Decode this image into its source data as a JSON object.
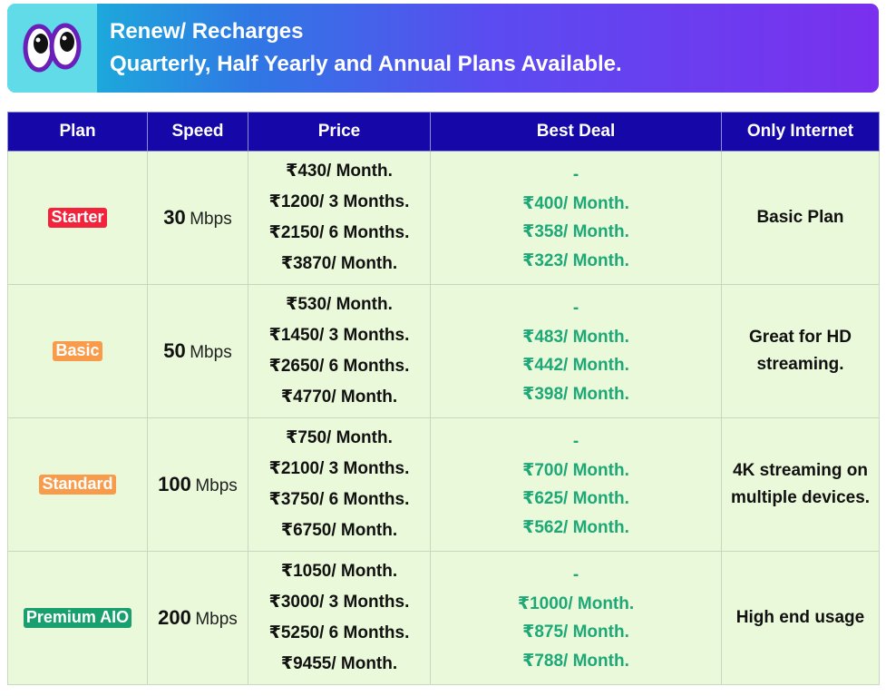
{
  "banner": {
    "logo_icon": "cartoon-eyes-icon",
    "line1": "Renew/ Recharges",
    "line2": "Quarterly, Half Yearly and Annual Plans Available."
  },
  "table": {
    "headers": [
      "Plan",
      "Speed",
      "Price",
      "Best Deal",
      "Only Internet"
    ],
    "rows": [
      {
        "plan": "Starter",
        "badge_color": "#f2233b",
        "speed": "30",
        "unit": "Mbps",
        "prices": [
          "₹430/ Month.",
          "₹1200/ 3 Months.",
          "₹2150/ 6 Months.",
          "₹3870/ Month."
        ],
        "deals": [
          "-",
          "₹400/ Month.",
          "₹358/ Month.",
          "₹323/ Month."
        ],
        "note": "Basic Plan"
      },
      {
        "plan": "Basic",
        "badge_color": "#f89c4c",
        "speed": "50",
        "unit": "Mbps",
        "prices": [
          "₹530/ Month.",
          "₹1450/ 3 Months.",
          "₹2650/ 6 Months.",
          "₹4770/ Month."
        ],
        "deals": [
          "-",
          "₹483/ Month.",
          "₹442/ Month.",
          "₹398/ Month."
        ],
        "note": "Great for HD streaming."
      },
      {
        "plan": "Standard",
        "badge_color": "#f89c4c",
        "speed": "100",
        "unit": "Mbps",
        "prices": [
          "₹750/ Month.",
          "₹2100/ 3 Months.",
          "₹3750/ 6 Months.",
          "₹6750/ Month."
        ],
        "deals": [
          "-",
          "₹700/ Month.",
          "₹625/ Month.",
          "₹562/ Month."
        ],
        "note": "4K streaming on multiple devices."
      },
      {
        "plan": "Premium AIO",
        "badge_color": "#1aa06e",
        "speed": "200",
        "unit": "Mbps",
        "prices": [
          "₹1050/ Month.",
          "₹3000/ 3 Months.",
          "₹5250/ 6 Months.",
          "₹9455/ Month."
        ],
        "deals": [
          "-",
          "₹1000/ Month.",
          "₹875/ Month.",
          "₹788/ Month."
        ],
        "note": "High end usage"
      }
    ]
  },
  "colors": {
    "header_bg": "#1608a8",
    "cell_bg": "#eaf9d9",
    "deal_text": "#1ea878"
  }
}
